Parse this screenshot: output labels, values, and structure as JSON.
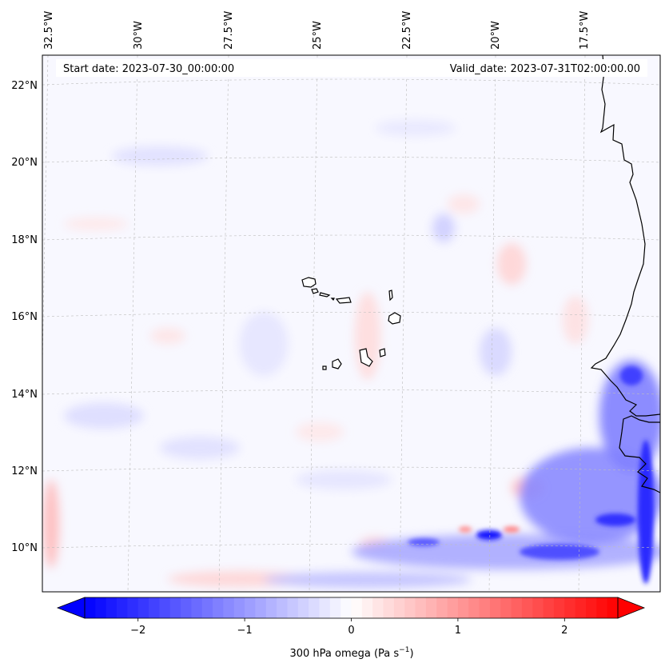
{
  "map": {
    "start_label": "Start date: 2023-07-30_00:00:00",
    "valid_label": "Valid_date: 2023-07-31T02:00:00.00",
    "lon_labels": [
      "32.5°W",
      "30°W",
      "27.5°W",
      "25°W",
      "22.5°W",
      "20°W",
      "17.5°W"
    ],
    "lat_labels": [
      "22°N",
      "20°N",
      "18°N",
      "16°N",
      "14°N",
      "12°N",
      "10°N"
    ],
    "islands": [
      "Santo Antão",
      "São Vicente",
      "São Nicolau",
      "Sal",
      "Boa Vista",
      "Maio",
      "Santiago",
      "Fogo",
      "Brava"
    ],
    "coastline": "West Africa (Mauritania, Senegal, Gambia, Guinea-Bissau)"
  },
  "colorbar": {
    "label_main": "300 hPa omega (Pa s",
    "label_exp": "−1",
    "label_close": ")",
    "colormap": "bwr",
    "range": [
      -2.5,
      2.5
    ],
    "ticks": [
      "−2",
      "−1",
      "0",
      "1",
      "2"
    ],
    "tick_values": [
      -2,
      -1,
      0,
      1,
      2
    ],
    "extend": "both",
    "colors": {
      "negative": "#0000ff",
      "zero": "#ffffff",
      "positive": "#ff0000"
    }
  }
}
